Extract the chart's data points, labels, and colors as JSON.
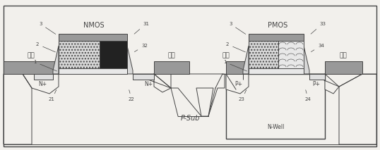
{
  "fig_width": 5.38,
  "fig_height": 2.13,
  "dpi": 100,
  "bg_color": "#f2f0ec",
  "line_color": "#444444",
  "nmos_label": "NMOS",
  "pmos_label": "PMOS",
  "psub_label": "P-Sub",
  "nwell_label": "N-Well",
  "source_label": "源极",
  "drain_label": "漏极",
  "nplus_label": "N+",
  "pplus_label": "P+",
  "dark_poly": "#222222",
  "light_poly": "#d8d8d8",
  "gray_fill": "#999999",
  "white_fill": "#f2f0ec",
  "medium_gray": "#bbbbbb"
}
